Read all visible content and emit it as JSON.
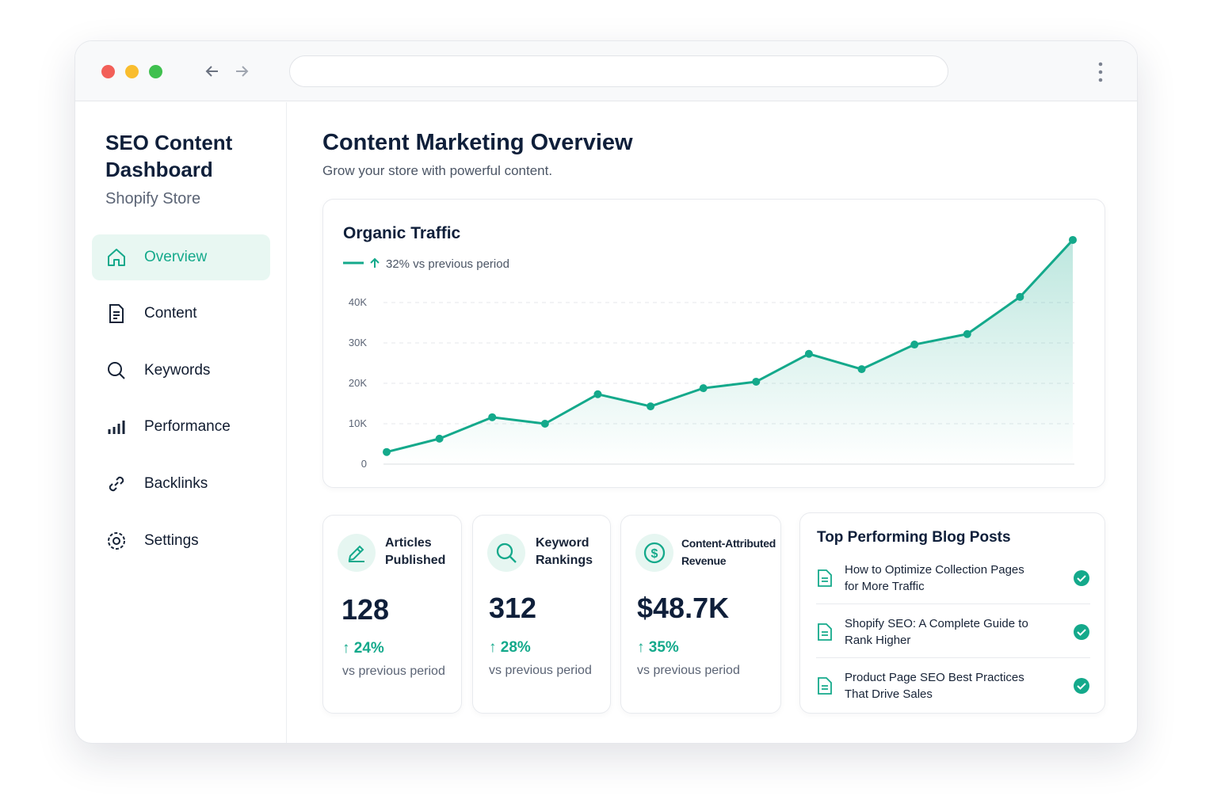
{
  "sidebar": {
    "title": "SEO Content Dashboard",
    "subtitle": "Shopify Store",
    "nav": [
      "Overview",
      "Content",
      "Keywords",
      "Performance",
      "Backlinks",
      "Settings"
    ]
  },
  "header": {
    "title": "Content Marketing Overview",
    "subtitle": "Grow your store with powerful content."
  },
  "chart_data": {
    "type": "line",
    "title": "Organic Traffic",
    "subtitle": "32% vs previous period",
    "categories": [
      null,
      null,
      null,
      null,
      null,
      null,
      null,
      null,
      null,
      null,
      null,
      null,
      null,
      null
    ],
    "series": [
      {
        "name": null,
        "color": "#14a98b",
        "values": [
          3000,
          6300,
          11600,
          10000,
          17300,
          14300,
          18800,
          20400,
          27300,
          23500,
          29600,
          32200,
          41400,
          55500
        ]
      }
    ],
    "ylim": [
      0,
      56000
    ],
    "yticks": [
      0,
      {
        "value": 10000,
        "label": "10K"
      },
      {
        "value": 20000,
        "label": "20K"
      },
      {
        "value": 30000,
        "label": "30K"
      },
      {
        "value": 40000,
        "label": "40K"
      }
    ],
    "grid": true
  },
  "stats": [
    {
      "label": "Articles Published",
      "value": "128",
      "change": "24%",
      "note": "vs previous period"
    },
    {
      "label": "Keyword Rankings",
      "value": "312",
      "change": "28%",
      "note": "vs previous period"
    },
    {
      "label": "Content-Attributed Revenue",
      "value": "$48.7K",
      "change": "35%",
      "note": "vs previous period"
    }
  ],
  "posts": {
    "title": "Top Performing Blog Posts",
    "items": [
      "How to Optimize Collection Pages for More Traffic",
      "Shopify SEO: A Complete Guide to Rank Higher",
      "Product Page SEO Best Practices That Drive Sales"
    ]
  }
}
